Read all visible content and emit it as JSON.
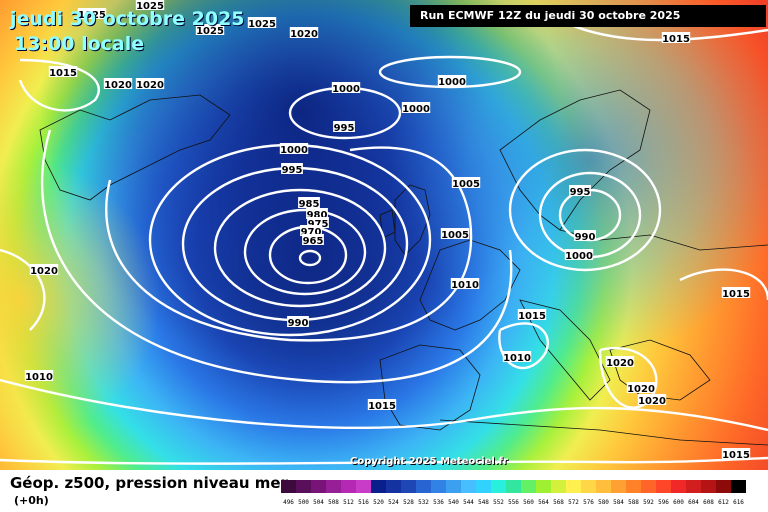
{
  "header": {
    "date": "jeudi 30 octobre 2025",
    "time": "13:00 locale",
    "run": "Run ECMWF 12Z du jeudi 30 octobre 2025"
  },
  "copyright": "Copyright 2025 Meteociel.fr",
  "footer": {
    "title": "Géop. z500, pression niveau mer",
    "subtitle": "(+0h)"
  },
  "isobar_labels": [
    "1025",
    "1025",
    "1025",
    "1025",
    "1020",
    "1015",
    "1015",
    "1020",
    "1020",
    "1000",
    "1000",
    "1000",
    "995",
    "1000",
    "995",
    "1005",
    "995",
    "985",
    "980",
    "975",
    "970",
    "965",
    "990",
    "1000",
    "1005",
    "1020",
    "1010",
    "1015",
    "1010",
    "1010",
    "1020",
    "1020",
    "1020",
    "990",
    "1015",
    "1015",
    "1015"
  ],
  "scale": {
    "labels": [
      "496",
      "500",
      "504",
      "508",
      "512",
      "516",
      "520",
      "524",
      "528",
      "532",
      "536",
      "540",
      "544",
      "548",
      "552",
      "556",
      "560",
      "564",
      "568",
      "572",
      "576",
      "580",
      "584",
      "588",
      "592",
      "596",
      "600",
      "604",
      "608",
      "612",
      "616"
    ],
    "colors": [
      "#3c0a3c",
      "#5a0f5a",
      "#781478",
      "#961e96",
      "#b428b4",
      "#c83cc8",
      "#0a1e8c",
      "#1432a0",
      "#1e46b4",
      "#2864d2",
      "#3282e6",
      "#3ca0f0",
      "#46beff",
      "#32d2ff",
      "#28f0dc",
      "#32e6a0",
      "#64f064",
      "#a0f032",
      "#d2f03c",
      "#fff050",
      "#ffd746",
      "#ffbe3c",
      "#ffa032",
      "#ff8228",
      "#ff6428",
      "#ff4628",
      "#f02828",
      "#d21e1e",
      "#b41414",
      "#8c0a0a",
      "#000000"
    ]
  }
}
